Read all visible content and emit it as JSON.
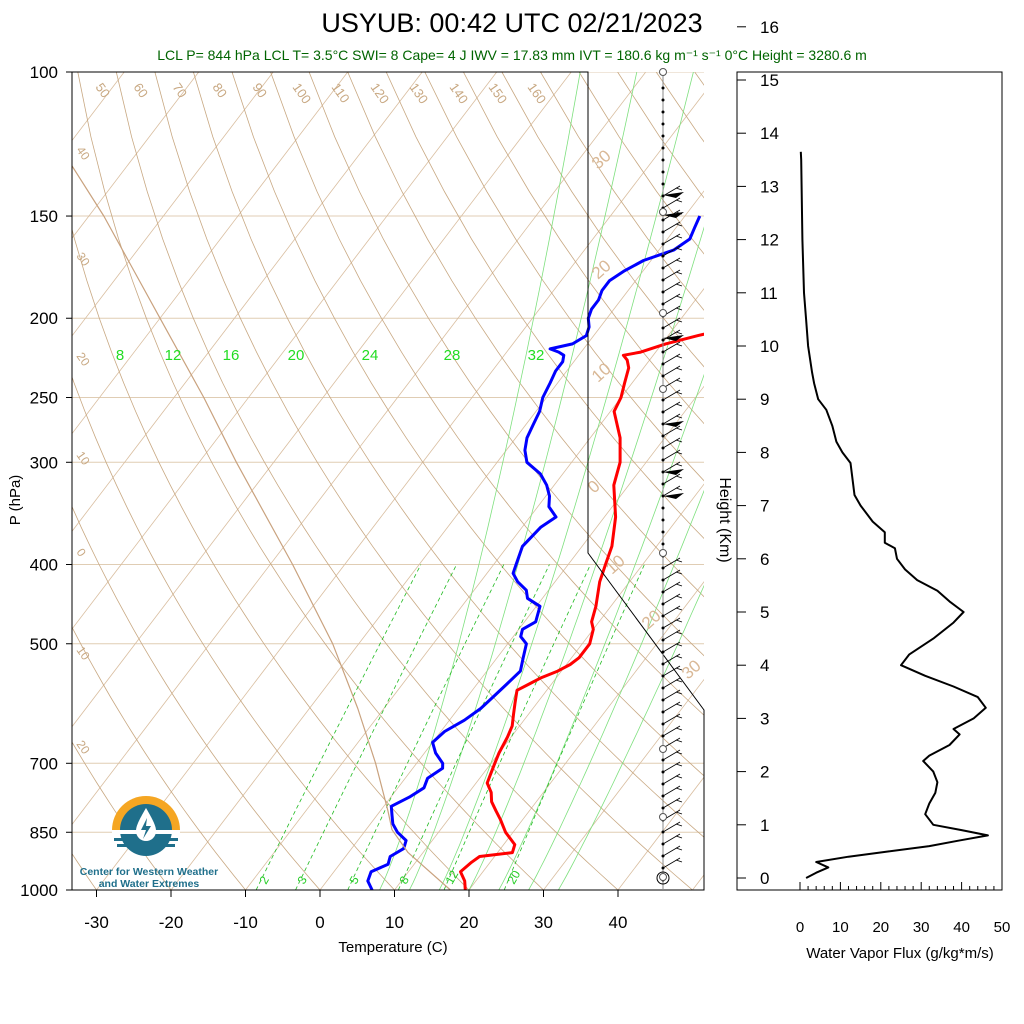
{
  "header": {
    "title": "USYUB: 00:42 UTC 02/21/2023",
    "subtitle": "LCL P= 844 hPa  LCL T= 3.5°C  SWI= 8  Cape= 4 J  IWV = 17.83 mm  IVT = 180.6 kg m⁻¹ s⁻¹  0°C Height = 3280.6 m"
  },
  "logo": {
    "line1": "Center for Western Weather",
    "line2": "and Water Extremes"
  },
  "chart_data": [
    {
      "type": "line",
      "name": "skew-t",
      "xlabel": "Temperature (C)",
      "ylabel": "P (hPa)",
      "xlim": [
        -35,
        45
      ],
      "ylim": [
        1000,
        100
      ],
      "yscale": "log",
      "x_ticks": [
        -30,
        -20,
        -10,
        0,
        10,
        20,
        30,
        40
      ],
      "y_ticks": [
        100,
        150,
        200,
        250,
        300,
        400,
        500,
        700,
        850,
        1000
      ],
      "mixing_ratio_labels": [
        "2",
        "3",
        "5",
        "8",
        "12",
        "20"
      ],
      "moist_adiabat_labels": [
        "8",
        "12",
        "16",
        "20",
        "24",
        "28",
        "32"
      ],
      "dry_adiabat_labels": [
        "50",
        "60",
        "70",
        "80",
        "90",
        "100",
        "110",
        "120",
        "130",
        "140",
        "150",
        "160"
      ],
      "isotherm_labels_left": [
        "40",
        "30",
        "20",
        "10",
        "0",
        "10",
        "20"
      ],
      "isotherm_labels_right": [
        "30",
        "20",
        "10",
        "0",
        "10",
        "20",
        "30"
      ],
      "series": [
        {
          "name": "temperature",
          "color": "#ff0000",
          "p": [
            1000,
            975,
            950,
            925,
            910,
            900,
            880,
            850,
            820,
            800,
            780,
            760,
            740,
            720,
            700,
            680,
            650,
            630,
            610,
            590,
            570,
            560,
            550,
            540,
            530,
            520,
            500,
            480,
            470,
            450,
            420,
            400,
            380,
            350,
            320,
            300,
            280,
            260,
            250,
            240,
            230,
            225,
            222,
            220,
            215,
            210,
            205,
            200,
            195,
            190,
            185,
            180,
            175,
            170,
            165,
            160,
            150
          ],
          "t": [
            19.5,
            18.5,
            17.0,
            17.5,
            18.0,
            22.0,
            21.5,
            19.0,
            17.0,
            15.5,
            14.0,
            13.0,
            11.5,
            11.0,
            10.5,
            10.0,
            9.5,
            9.0,
            8.0,
            7.0,
            6.0,
            7.0,
            8.0,
            9.5,
            10.5,
            11.0,
            11.0,
            10.0,
            9.0,
            8.0,
            6.0,
            5.0,
            4.0,
            1.5,
            -2.0,
            -3.5,
            -6.0,
            -9.5,
            -10.0,
            -11.0,
            -12.0,
            -13.0,
            -14.0,
            -12.0,
            -9.5,
            -6.0,
            -2.0,
            0.0,
            -1.5,
            -2.5,
            -4.0,
            -3.5,
            -3.5,
            -3.0,
            1.5,
            4.0,
            2.5
          ]
        },
        {
          "name": "dewpoint",
          "color": "#0000ff",
          "p": [
            1000,
            975,
            950,
            930,
            910,
            890,
            870,
            850,
            830,
            810,
            790,
            770,
            750,
            730,
            710,
            700,
            680,
            660,
            640,
            620,
            600,
            580,
            560,
            540,
            520,
            500,
            490,
            480,
            470,
            460,
            450,
            440,
            430,
            420,
            410,
            400,
            380,
            360,
            350,
            340,
            330,
            320,
            310,
            300,
            290,
            280,
            270,
            260,
            250,
            240,
            232,
            226,
            222,
            220,
            218,
            215,
            210,
            205,
            200,
            195,
            190,
            185,
            180,
            175,
            170,
            165,
            160,
            155,
            150
          ],
          "t": [
            7.0,
            5.5,
            5.0,
            6.5,
            6.0,
            7.0,
            6.5,
            4.5,
            3.0,
            2.0,
            1.0,
            2.5,
            3.5,
            3.0,
            4.0,
            3.5,
            1.5,
            0.0,
            0.5,
            2.0,
            3.0,
            3.5,
            4.0,
            4.5,
            3.5,
            2.5,
            1.0,
            0.5,
            1.5,
            1.0,
            0.5,
            -2.0,
            -3.0,
            -5.0,
            -6.5,
            -7.0,
            -8.0,
            -7.5,
            -6.5,
            -8.5,
            -9.5,
            -11.0,
            -13.0,
            -16.0,
            -17.5,
            -18.5,
            -19.0,
            -19.5,
            -20.5,
            -21.0,
            -21.5,
            -21.5,
            -22.0,
            -23.0,
            -24.5,
            -22.0,
            -21.0,
            -21.5,
            -22.5,
            -23.0,
            -23.0,
            -23.5,
            -23.5,
            -22.5,
            -21.0,
            -18.0,
            -17.0,
            -17.5,
            -18.0
          ]
        },
        {
          "name": "parcel",
          "color": "#c9a27e",
          "p": [
            1000,
            900,
            844,
            800,
            700,
            600,
            500,
            400,
            300,
            250,
            200,
            150,
            100
          ],
          "t": [
            17.5,
            8.0,
            3.5,
            1.0,
            -5.5,
            -13.5,
            -23.5,
            -37.0,
            -55.0,
            -66.0,
            -80.0,
            -98.0,
            -125.0
          ]
        }
      ]
    },
    {
      "type": "line",
      "name": "water-vapor-flux",
      "xlabel": "Water Vapor Flux (g/kg*m/s)",
      "ylabel": "Height (Km)",
      "xlim": [
        0,
        50
      ],
      "ylim": [
        -0.2,
        16.5
      ],
      "x_ticks": [
        0,
        10,
        20,
        30,
        40,
        50
      ],
      "y_ticks": [
        0,
        1,
        2,
        3,
        4,
        5,
        6,
        7,
        8,
        9,
        10,
        11,
        12,
        13,
        14,
        15,
        16
      ],
      "series": [
        {
          "name": "flux",
          "color": "#000000",
          "height": [
            0.0,
            0.1,
            0.2,
            0.3,
            0.4,
            0.5,
            0.6,
            0.7,
            0.8,
            0.9,
            1.0,
            1.2,
            1.4,
            1.6,
            1.8,
            2.0,
            2.2,
            2.3,
            2.5,
            2.7,
            2.8,
            3.0,
            3.2,
            3.4,
            3.6,
            3.8,
            4.0,
            4.2,
            4.5,
            4.8,
            5.0,
            5.2,
            5.4,
            5.6,
            5.8,
            6.0,
            6.2,
            6.3,
            6.5,
            6.7,
            7.0,
            7.2,
            7.5,
            7.8,
            8.0,
            8.2,
            8.5,
            8.8,
            9.0,
            9.3,
            9.5,
            10.0,
            10.5,
            11.0,
            11.5,
            12.0,
            12.5,
            13.0,
            13.5,
            13.65
          ],
          "flux": [
            1.5,
            4.0,
            7.0,
            4.0,
            12.0,
            22.0,
            32.0,
            39.0,
            46.5,
            40.0,
            33.0,
            31.0,
            32.0,
            33.5,
            34.0,
            33.0,
            30.5,
            32.0,
            37.0,
            39.5,
            38.0,
            43.0,
            46.0,
            44.0,
            38.0,
            31.0,
            25.0,
            27.0,
            33.0,
            38.0,
            40.5,
            37.0,
            34.0,
            29.0,
            26.0,
            24.0,
            23.5,
            21.0,
            21.0,
            18.0,
            15.0,
            13.5,
            13.0,
            12.5,
            10.5,
            9.0,
            8.0,
            6.5,
            4.5,
            3.5,
            3.0,
            2.0,
            1.5,
            1.0,
            0.8,
            0.6,
            0.5,
            0.4,
            0.3,
            0.2
          ]
        }
      ]
    }
  ]
}
